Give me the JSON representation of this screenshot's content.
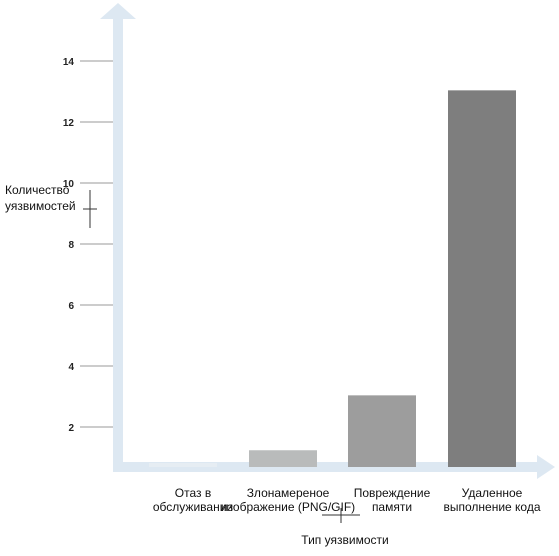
{
  "chart_data": {
    "type": "bar",
    "title": "",
    "xlabel": "Тип уязвимости",
    "ylabel": [
      "Количество",
      "уязвимостей"
    ],
    "ylim": [
      0,
      15
    ],
    "yticks": [
      2,
      4,
      6,
      8,
      10,
      12,
      14
    ],
    "grid": false,
    "categories": [
      [
        "Отаз в",
        "обслуживании"
      ],
      [
        "Злонамереное",
        "изображение (PNG/GIF)"
      ],
      [
        "Повреждение",
        "памяти"
      ],
      [
        "Удаленное",
        "выполнение кода"
      ]
    ],
    "values": [
      0.8,
      1.5,
      3.3,
      13.3
    ],
    "colors": {
      "axis": "#dde8f2",
      "bars": [
        "#e6edf3",
        "#b9bbbb",
        "#9d9d9d",
        "#7e7e7e"
      ]
    }
  }
}
